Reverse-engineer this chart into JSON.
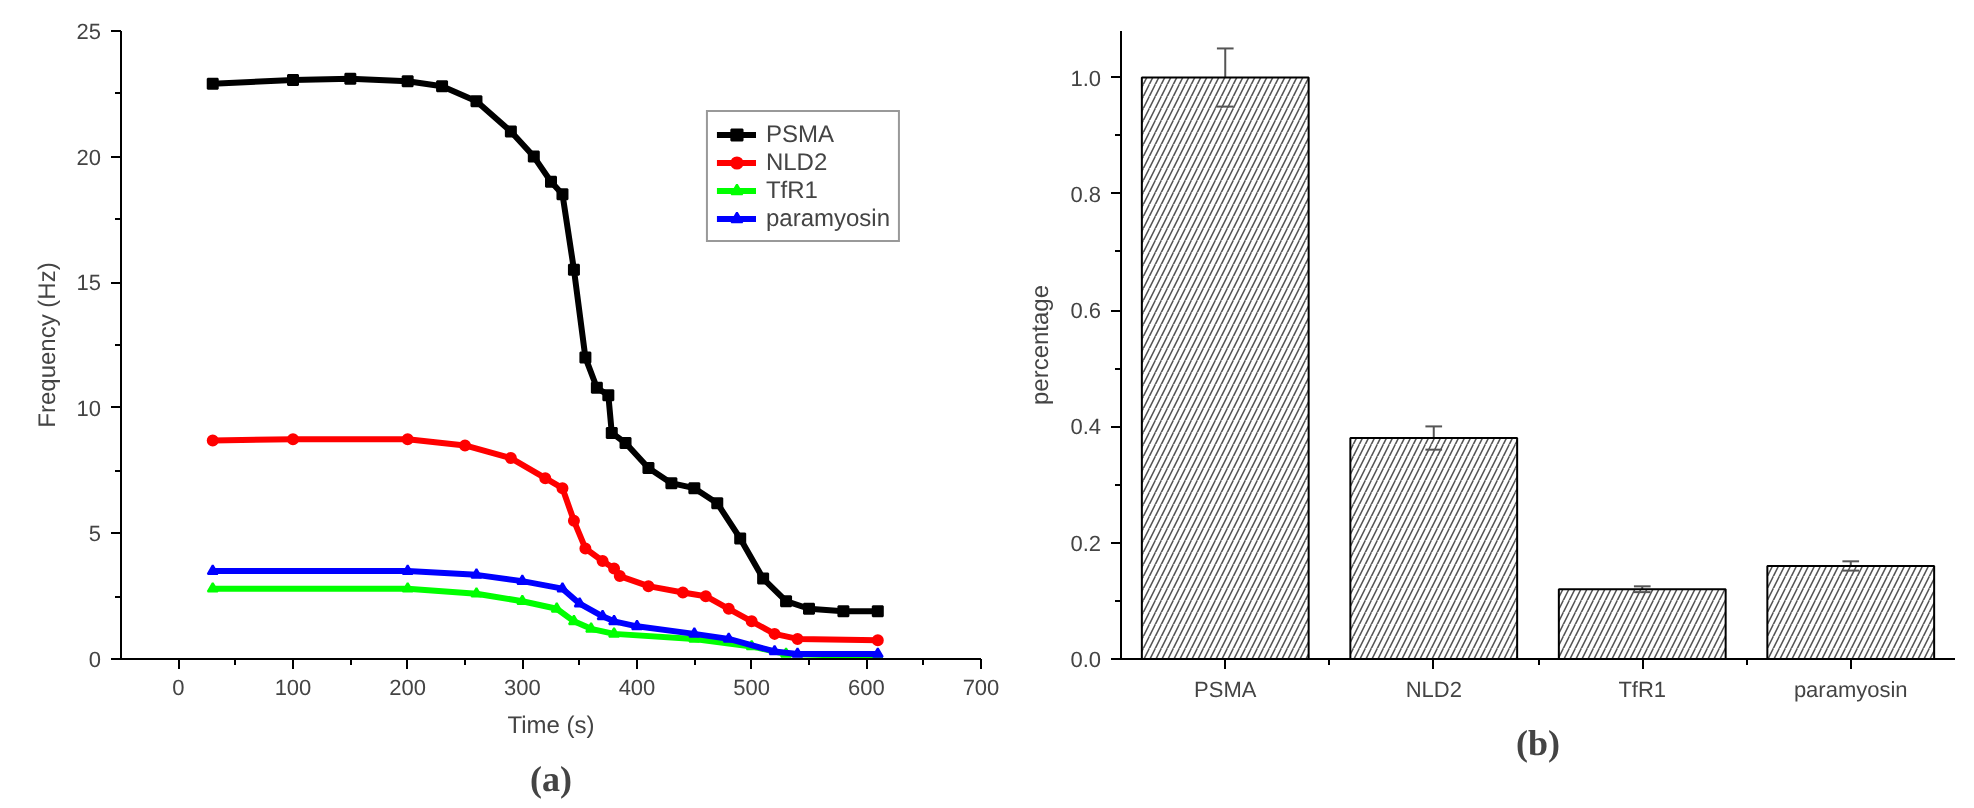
{
  "chart_data": [
    {
      "type": "line",
      "xlabel": "Time (s)",
      "ylabel": "Frequency (Hz)",
      "annotations": [
        "(a)"
      ],
      "xlim": [
        -50,
        700
      ],
      "ylim": [
        0,
        25
      ],
      "xticks": [
        0,
        100,
        200,
        300,
        400,
        500,
        600,
        700
      ],
      "yticks": [
        0,
        5,
        10,
        15,
        20,
        25
      ],
      "grid": false,
      "legend": "top right",
      "series": [
        {
          "name": "PSMA",
          "color": "#000000",
          "marker": "square",
          "x": [
            30,
            100,
            150,
            200,
            230,
            260,
            290,
            310,
            325,
            335,
            345,
            355,
            365,
            375,
            378,
            390,
            410,
            430,
            450,
            470,
            490,
            510,
            530,
            550,
            580,
            610
          ],
          "values": [
            22.9,
            23.05,
            23.1,
            23.0,
            22.8,
            22.2,
            21.0,
            20.0,
            19.0,
            18.5,
            15.5,
            12.0,
            10.8,
            10.5,
            9.0,
            8.6,
            7.6,
            7.0,
            6.8,
            6.2,
            4.8,
            3.2,
            2.3,
            2.0,
            1.9,
            1.9
          ]
        },
        {
          "name": "NLD2",
          "color": "#ff0000",
          "marker": "circle",
          "x": [
            30,
            100,
            200,
            250,
            290,
            320,
            335,
            345,
            355,
            370,
            380,
            385,
            410,
            440,
            460,
            480,
            500,
            520,
            540,
            610
          ],
          "values": [
            8.7,
            8.75,
            8.75,
            8.5,
            8.0,
            7.2,
            6.8,
            5.5,
            4.4,
            3.9,
            3.6,
            3.3,
            2.9,
            2.65,
            2.5,
            2.0,
            1.5,
            1.0,
            0.8,
            0.75
          ]
        },
        {
          "name": "TfR1",
          "color": "#00ff00",
          "marker": "triangle",
          "x": [
            30,
            200,
            260,
            300,
            330,
            345,
            360,
            380,
            450,
            500,
            530,
            610
          ],
          "values": [
            2.8,
            2.8,
            2.6,
            2.3,
            2.0,
            1.5,
            1.2,
            1.0,
            0.8,
            0.5,
            0.2,
            0.1
          ]
        },
        {
          "name": "paramyosin",
          "color": "#0000ff",
          "marker": "triangle",
          "x": [
            30,
            200,
            260,
            300,
            335,
            350,
            370,
            380,
            400,
            450,
            480,
            520,
            540,
            610
          ],
          "values": [
            3.5,
            3.5,
            3.35,
            3.1,
            2.8,
            2.2,
            1.7,
            1.5,
            1.3,
            1.0,
            0.8,
            0.3,
            0.2,
            0.2
          ]
        }
      ]
    },
    {
      "type": "bar",
      "ylabel": "percentage",
      "annotations": [
        "(b)"
      ],
      "categories": [
        "PSMA",
        "NLD2",
        "TfR1",
        "paramyosin"
      ],
      "values": [
        1.0,
        0.38,
        0.12,
        0.16
      ],
      "errors": [
        0.05,
        0.02,
        0.005,
        0.008
      ],
      "color": "#ffffff",
      "ylim": [
        0,
        1.08
      ],
      "yticks": [
        {
          "value": 0,
          "label": "0.0"
        },
        {
          "value": 0.2,
          "label": "0.2"
        },
        {
          "value": 0.4,
          "label": "0.4"
        },
        {
          "value": 0.6,
          "label": "0.6"
        },
        {
          "value": 0.8,
          "label": "0.8"
        },
        {
          "value": 1.0,
          "label": "1.0"
        }
      ],
      "grid": false
    }
  ]
}
